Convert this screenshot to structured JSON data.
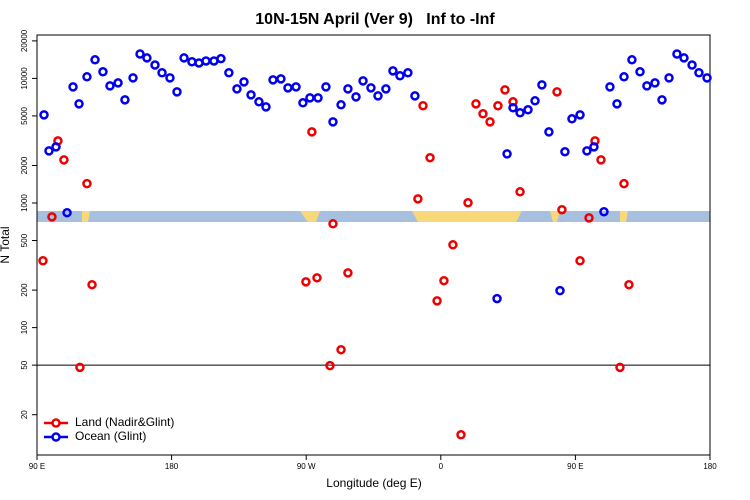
{
  "chart_data": {
    "type": "scatter",
    "title": "10N-15N April (Ver 9)   Inf to -Inf",
    "xlabel": "Longitude (deg E)",
    "ylabel": "N Total",
    "xlim": [
      90,
      540
    ],
    "ylim": [
      9.5,
      22300
    ],
    "ylog": true,
    "hline": 50,
    "xticks": [
      {
        "value": 90,
        "label": "90 E"
      },
      {
        "value": 180,
        "label": "180"
      },
      {
        "value": 270,
        "label": "90 W"
      },
      {
        "value": 360,
        "label": "0"
      },
      {
        "value": 450,
        "label": "90 E"
      },
      {
        "value": 540,
        "label": "180"
      }
    ],
    "yticks": [
      20,
      50,
      100,
      200,
      500,
      1000,
      2000,
      5000,
      10000,
      20000
    ],
    "legend": "bottom-left",
    "series": [
      {
        "name": "Land (Nadir&Glint)",
        "color": "#ee0000",
        "x": [
          94,
          100,
          104,
          108,
          118.7,
          123.4,
          126.8,
          269.8,
          273.8,
          277.2,
          285.9,
          287.9,
          293.3,
          297.9,
          344.7,
          348.1,
          352.8,
          357.5,
          362.1,
          368.1,
          373.5,
          378.2,
          383.5,
          388.2,
          392.9,
          398.2,
          402.9,
          408.3,
          413,
          437.7,
          441,
          453.1,
          459.1,
          463.1,
          467.1,
          479.8,
          482.5,
          485.8
        ],
        "values": [
          344,
          774,
          3150,
          2220,
          48,
          1430,
          221,
          233,
          3720,
          251,
          49.5,
          681,
          66.5,
          275,
          1080,
          6030,
          2310,
          164,
          238,
          462,
          13.8,
          1005,
          6250,
          5200,
          4480,
          6030,
          8090,
          6490,
          1230,
          7800,
          883,
          344,
          760,
          3150,
          2220,
          48,
          1430,
          221
        ]
      },
      {
        "name": "Ocean (Glint)",
        "color": "#0000ee",
        "x": [
          94.7,
          98,
          102.7,
          110.1,
          114.1,
          118.1,
          123.4,
          128.8,
          134.1,
          138.8,
          144.2,
          148.8,
          154.2,
          158.9,
          163.5,
          168.9,
          173.6,
          178.9,
          183.6,
          188.3,
          193.6,
          198.3,
          203,
          208.3,
          213,
          218.3,
          223.7,
          228.4,
          233.1,
          238.4,
          243.1,
          247.8,
          253.1,
          257.8,
          263.2,
          267.8,
          272.5,
          277.9,
          283.2,
          287.9,
          293.3,
          297.9,
          303.3,
          308,
          313.3,
          318,
          323.3,
          328,
          332.7,
          338,
          342.7,
          397.6,
          404.3,
          408.3,
          413,
          418.3,
          423,
          427.6,
          432.3,
          439.7,
          443,
          447.7,
          453.1,
          457.7,
          462.4,
          469.1,
          473.1,
          477.8,
          482.5,
          487.8,
          493.2,
          497.8,
          503.2,
          507.9,
          512.6,
          517.9,
          522.6,
          528,
          532.6,
          538
        ],
        "values": [
          5100,
          2620,
          2820,
          836,
          8550,
          6250,
          10300,
          14100,
          11300,
          8710,
          9200,
          6730,
          10100,
          15700,
          14600,
          12800,
          11100,
          10100,
          7800,
          14600,
          13600,
          13300,
          13800,
          13800,
          14400,
          11100,
          8240,
          9380,
          7380,
          6490,
          5910,
          9730,
          9910,
          8400,
          8550,
          6370,
          6980,
          6980,
          8550,
          4480,
          6140,
          8240,
          7110,
          9550,
          8400,
          7240,
          8240,
          11500,
          10500,
          11100,
          7240,
          171,
          2480,
          5810,
          5300,
          5600,
          6610,
          8870,
          3720,
          198,
          2580,
          4740,
          5100,
          2620,
          2820,
          851,
          8550,
          6250,
          10300,
          14100,
          11300,
          8710,
          9200,
          6730,
          10100,
          15700,
          14600,
          12800,
          11100,
          10100
        ]
      }
    ]
  }
}
